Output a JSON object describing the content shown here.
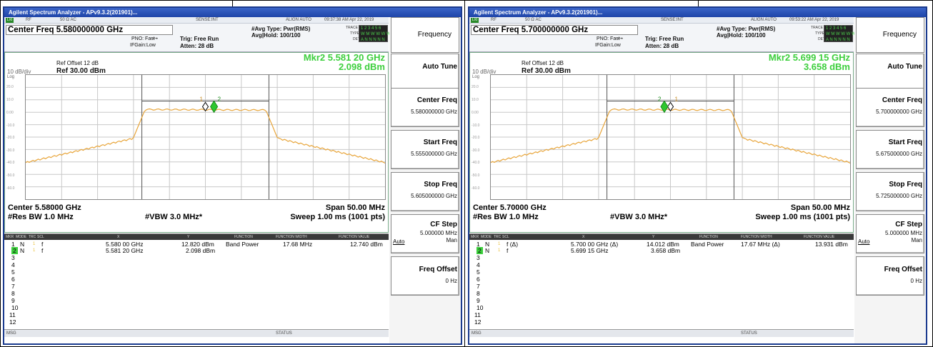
{
  "panels": [
    {
      "title": "Agilent Spectrum Analyzer - APv9.3.2(201901)...",
      "status_bar": {
        "rf": "RF",
        "impedance": "50 Ω AC",
        "sense": "SENSE:INT",
        "align": "ALIGN AUTO",
        "datetime": "09:37:38 AM Apr 22, 2019"
      },
      "center_freq": "Center Freq 5.580000000 GHz",
      "pno": "PNO: Fast",
      "ifgain": "IFGain:Low",
      "trig": "Trig: Free Run",
      "atten": "Atten: 28 dB",
      "avg_type": "#Avg Type: Pwr(RMS)",
      "avg_hold": "Avg|Hold: 100/100",
      "trace_labels": {
        "trace": "TRACE",
        "type": "TYPE",
        "det": "DET"
      },
      "trace_rows": [
        "1 2 3 4 5 6",
        "W M W W W W",
        "A N N N N N"
      ],
      "ref_offset": "Ref Offset 12 dB",
      "scale": "10 dB/div",
      "log": "Log",
      "ref_level": "Ref 30.00 dBm",
      "marker_freq": "Mkr2 5.581 20 GHz",
      "marker_amp": "2.098 dBm",
      "y_ticks": [
        "20.0",
        "10.0",
        "0.00",
        "-10.0",
        "-20.0",
        "-30.0",
        "-40.0",
        "-50.0",
        "-60.0"
      ],
      "footer": {
        "center": "Center 5.58000 GHz",
        "res_bw": "#Res BW 1.0 MHz",
        "vbw": "#VBW 3.0 MHz*",
        "span": "Span 50.00 MHz",
        "sweep": "Sweep  1.00 ms (1001 pts)"
      },
      "marker_table": {
        "headers": [
          "MKR",
          "MODE",
          "TRC",
          "SCL",
          "X",
          "Y",
          "FUNCTION",
          "FUNCTION WIDTH",
          "FUNCTION VALUE"
        ],
        "rows": [
          {
            "num": "1",
            "mode": "N",
            "trc": "1",
            "scl": "f",
            "x": "5.580 00 GHz",
            "y": "12.820 dBm",
            "func": "Band Power",
            "width": "17.68 MHz",
            "value": "12.740 dBm"
          },
          {
            "num": "2",
            "mode": "N",
            "trc": "1",
            "scl": "f",
            "x": "5.581 20 GHz",
            "y": "2.098 dBm",
            "func": "",
            "width": "",
            "value": ""
          }
        ],
        "empty_rows": [
          "3",
          "4",
          "5",
          "6",
          "7",
          "8",
          "9",
          "10",
          "11",
          "12"
        ]
      },
      "msg": "MSG",
      "status": "STATUS",
      "softkeys": {
        "menu": "Frequency",
        "auto_tune": "Auto Tune",
        "center_freq": "Center Freq",
        "center_freq_val": "5.580000000 GHz",
        "start_freq": "Start Freq",
        "start_freq_val": "5.555000000 GHz",
        "stop_freq": "Stop Freq",
        "stop_freq_val": "5.605000000 GHz",
        "cf_step": "CF Step",
        "cf_step_val": "5.000000 MHz",
        "cf_auto": "Auto",
        "cf_man": "Man",
        "freq_offset": "Freq Offset",
        "freq_offset_val": "0 Hz"
      },
      "trace_color": "#e8a53a",
      "marker_color": "#2ec72e",
      "center_mhz": 5580,
      "marker_mhz": 5581.2
    },
    {
      "title": "Agilent Spectrum Analyzer - APv9.3.2(201901)...",
      "status_bar": {
        "rf": "RF",
        "impedance": "50 Ω AC",
        "sense": "SENSE:INT",
        "align": "ALIGN AUTO",
        "datetime": "09:53:22 AM Apr 22, 2019"
      },
      "center_freq": "Center Freq 5.700000000 GHz",
      "pno": "PNO: Fast",
      "ifgain": "IFGain:Low",
      "trig": "Trig: Free Run",
      "atten": "Atten: 28 dB",
      "avg_type": "#Avg Type: Pwr(RMS)",
      "avg_hold": "Avg|Hold: 100/100",
      "trace_labels": {
        "trace": "TRACE",
        "type": "TYPE",
        "det": "DET"
      },
      "trace_rows": [
        "1 2 3 4 5 6",
        "W M W W W W",
        "A N N N N N"
      ],
      "ref_offset": "Ref Offset 12 dB",
      "scale": "10 dB/div",
      "log": "Log",
      "ref_level": "Ref 30.00 dBm",
      "marker_freq": "Mkr2 5.699 15 GHz",
      "marker_amp": "3.658 dBm",
      "y_ticks": [
        "20.0",
        "10.0",
        "0.00",
        "-10.0",
        "-20.0",
        "-30.0",
        "-40.0",
        "-50.0",
        "-60.0"
      ],
      "footer": {
        "center": "Center 5.70000 GHz",
        "res_bw": "#Res BW 1.0 MHz",
        "vbw": "#VBW 3.0 MHz*",
        "span": "Span 50.00 MHz",
        "sweep": "Sweep  1.00 ms (1001 pts)"
      },
      "marker_table": {
        "headers": [
          "MKR",
          "MODE",
          "TRC",
          "SCL",
          "X",
          "Y",
          "FUNCTION",
          "FUNCTION WIDTH",
          "FUNCTION VALUE"
        ],
        "rows": [
          {
            "num": "1",
            "mode": "N",
            "trc": "1",
            "scl": "f  (Δ)",
            "x": "5.700 00 GHz  (Δ)",
            "y": "14.012 dBm",
            "func": "Band Power",
            "width": "17.67 MHz  (Δ)",
            "value": "13.931 dBm"
          },
          {
            "num": "2",
            "mode": "N",
            "trc": "1",
            "scl": "f",
            "x": "5.699 15 GHz",
            "y": "3.658 dBm",
            "func": "",
            "width": "",
            "value": ""
          }
        ],
        "empty_rows": [
          "3",
          "4",
          "5",
          "6",
          "7",
          "8",
          "9",
          "10",
          "11",
          "12"
        ]
      },
      "msg": "MSG",
      "status": "STATUS",
      "softkeys": {
        "menu": "Frequency",
        "auto_tune": "Auto Tune",
        "center_freq": "Center Freq",
        "center_freq_val": "5.700000000 GHz",
        "start_freq": "Start Freq",
        "start_freq_val": "5.675000000 GHz",
        "stop_freq": "Stop Freq",
        "stop_freq_val": "5.725000000 GHz",
        "cf_step": "CF Step",
        "cf_step_val": "5.000000 MHz",
        "cf_auto": "Auto",
        "cf_man": "Man",
        "freq_offset": "Freq Offset",
        "freq_offset_val": "0 Hz"
      },
      "trace_color": "#e8a53a",
      "marker_color": "#2ec72e",
      "center_mhz": 5700,
      "marker_mhz": 5699.15
    }
  ]
}
